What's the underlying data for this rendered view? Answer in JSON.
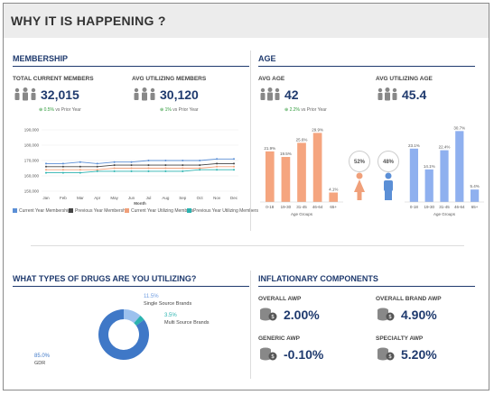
{
  "header": {
    "title": "WHY IT IS HAPPENING ?"
  },
  "membership": {
    "section_title": "MEMBERSHIP",
    "total_label": "TOTAL CURRENT MEMBERS",
    "total_value": "32,015",
    "total_change": "0.5%",
    "total_change_suffix": "vs Prior Year",
    "avg_label": "AVG UTILIZING MEMBERS",
    "avg_value": "30,120",
    "avg_change": "1%",
    "avg_change_suffix": "vs Prior Year",
    "x_label": "Month",
    "legend": [
      {
        "label": "Current Year Membership",
        "color": "#5b8fd6"
      },
      {
        "label": "Previous Year Membership",
        "color": "#444444"
      },
      {
        "label": "Current Year Utilizing Members",
        "color": "#f0a07a"
      },
      {
        "label": "Previous Year Utilizing Members",
        "color": "#2bb3b0"
      }
    ]
  },
  "age": {
    "section_title": "AGE",
    "avg_label": "AVG AGE",
    "avg_value": "42",
    "avg_change": "2.2%",
    "avg_change_suffix": "vs Prior Year",
    "util_label": "AVG UTILIZING AGE",
    "util_value": "45.4",
    "female_pct": "52%",
    "male_pct": "48%",
    "group_label_left": "Age Groups",
    "group_label_right": "Age Groups"
  },
  "drugs": {
    "section_title": "WHAT TYPES OF DRUGS ARE YOU UTILIZING?",
    "slices": [
      {
        "pct": "11.5%",
        "name": "Single Source Brands",
        "value": 11.5,
        "color": "#9cc1ee"
      },
      {
        "pct": "3.5%",
        "name": "Multi Source Brands",
        "value": 3.5,
        "color": "#2bb3b0"
      },
      {
        "pct": "85.0%",
        "name": "GDR",
        "value": 85.0,
        "color": "#3f78c7"
      }
    ]
  },
  "inflation": {
    "section_title": "INFLATIONARY COMPONENTS",
    "items": [
      {
        "label": "OVERALL AWP",
        "value": "2.00%"
      },
      {
        "label": "OVERALL BRAND AWP",
        "value": "4.90%"
      },
      {
        "label": "GENERIC AWP",
        "value": "-0.10%"
      },
      {
        "label": "SPECIALTY AWP",
        "value": "5.20%"
      }
    ]
  },
  "chart_data": [
    {
      "type": "line",
      "title": "",
      "xlabel": "Month",
      "ylabel": "",
      "categories": [
        "Jan",
        "Feb",
        "Mar",
        "Apr",
        "May",
        "Jun",
        "Jul",
        "Aug",
        "Sep",
        "Oct",
        "Nov",
        "Dec"
      ],
      "yticks": [
        "190,000",
        "180,000",
        "170,000",
        "160,000",
        "150,000"
      ],
      "series": [
        {
          "name": "Current Year Membership",
          "color": "#5b8fd6",
          "values": [
            168,
            168,
            169,
            168,
            169,
            169,
            170,
            170,
            170,
            170,
            171,
            171
          ]
        },
        {
          "name": "Previous Year Membership",
          "color": "#444444",
          "values": [
            166,
            166,
            166,
            166,
            167,
            167,
            167,
            167,
            167,
            167,
            168,
            168
          ]
        },
        {
          "name": "Current Year Utilizing Members",
          "color": "#f0a07a",
          "values": [
            164,
            164,
            164,
            164,
            165,
            165,
            165,
            165,
            165,
            165,
            166,
            166
          ]
        },
        {
          "name": "Previous Year Utilizing Members",
          "color": "#2bb3b0",
          "values": [
            162,
            162,
            162,
            163,
            163,
            163,
            163,
            163,
            163,
            164,
            164,
            164
          ]
        }
      ],
      "ylim": [
        150,
        190
      ]
    },
    {
      "type": "bar",
      "categories": [
        "0-18",
        "19-30",
        "31-45",
        "46-64",
        "65+"
      ],
      "values": [
        21.9,
        19.5,
        25.6,
        29.9,
        4.1
      ],
      "labels": [
        "21.9%",
        "19.5%",
        "25.6%",
        "29.9%",
        "4.1%"
      ],
      "color": "#f5a57f",
      "xlabel": "Age Groups",
      "ylim": [
        0,
        32
      ]
    },
    {
      "type": "bar",
      "categories": [
        "0-18",
        "19-30",
        "31-45",
        "46-64",
        "65+"
      ],
      "values": [
        23.1,
        14.1,
        22.4,
        30.7,
        5.4
      ],
      "labels": [
        "23.1%",
        "14.1%",
        "22.4%",
        "30.7%",
        "5.4%"
      ],
      "color": "#8fb0ef",
      "xlabel": "Age Groups",
      "ylim": [
        0,
        32
      ]
    }
  ]
}
